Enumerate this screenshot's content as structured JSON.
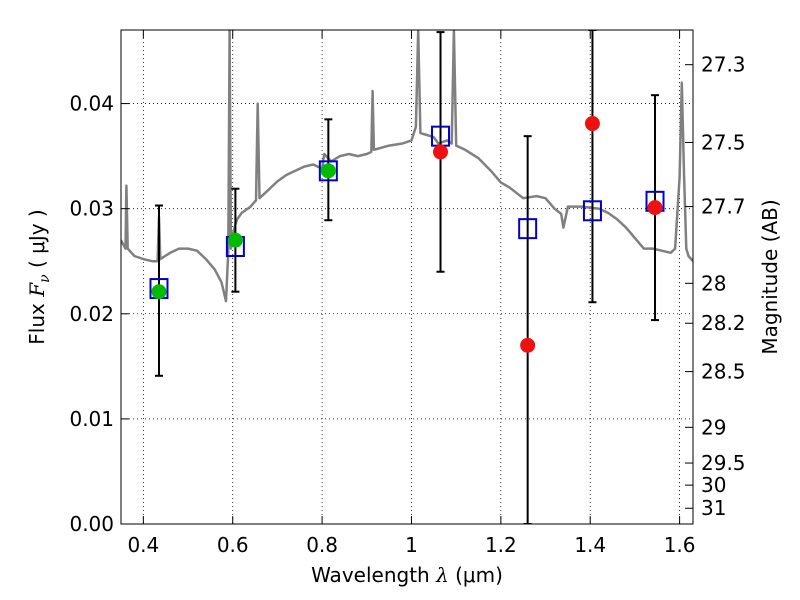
{
  "chart_data": {
    "type": "scatter",
    "xlabel": {
      "prefix": "Wavelength  ",
      "symbol": "λ",
      "units": " (μm)"
    },
    "ylabel": {
      "prefix": "Flux  ",
      "symbol": "F",
      "subscript": "ν",
      "units": "  ( μJy )"
    },
    "y2label": "Magnitude (AB)",
    "xlim": [
      0.35,
      1.63
    ],
    "ylim": [
      0.0,
      0.047
    ],
    "x_ticks": [
      0.4,
      0.6,
      0.8,
      1.0,
      1.2,
      1.4,
      1.6
    ],
    "x_tick_labels": [
      "0.4",
      "0.6",
      "0.8",
      "1",
      "1.2",
      "1.4",
      "1.6"
    ],
    "y_ticks": [
      0.0,
      0.01,
      0.02,
      0.03,
      0.04
    ],
    "y_tick_labels": [
      "0.00",
      "0.01",
      "0.02",
      "0.03",
      "0.04"
    ],
    "magnitude_ticks": [
      {
        "label": "27.3",
        "flux": 0.0437
      },
      {
        "label": "27.5",
        "flux": 0.0363
      },
      {
        "label": "27.7",
        "flux": 0.0302
      },
      {
        "label": "28",
        "flux": 0.0229
      },
      {
        "label": "28.2",
        "flux": 0.0191
      },
      {
        "label": "28.5",
        "flux": 0.0145
      },
      {
        "label": "29",
        "flux": 0.0092
      },
      {
        "label": "29.5",
        "flux": 0.0058
      },
      {
        "label": "30",
        "flux": 0.0037
      },
      {
        "label": "31",
        "flux": 0.0015
      }
    ],
    "grid": true,
    "colors": {
      "sed": "#808080",
      "model": "#0000cc",
      "detected": "#00bb00",
      "observed": "#ee1111",
      "errorbar": "#000000"
    },
    "observations": [
      {
        "x": 0.435,
        "flux": 0.0221,
        "err_low": 0.0141,
        "err_high": 0.0303,
        "kind": "detected"
      },
      {
        "x": 0.606,
        "flux": 0.027,
        "err_low": 0.0221,
        "err_high": 0.0319,
        "kind": "detected"
      },
      {
        "x": 0.814,
        "flux": 0.0336,
        "err_low": 0.0289,
        "err_high": 0.0385,
        "kind": "detected"
      },
      {
        "x": 1.065,
        "flux": 0.0354,
        "err_low": 0.024,
        "err_high": 0.0468,
        "kind": "observed"
      },
      {
        "x": 1.26,
        "flux": 0.017,
        "err_low": 0.0,
        "err_high": 0.0369,
        "kind": "observed"
      },
      {
        "x": 1.405,
        "flux": 0.0381,
        "err_low": 0.0211,
        "err_high": 0.047,
        "kind": "observed"
      },
      {
        "x": 1.545,
        "flux": 0.0301,
        "err_low": 0.0194,
        "err_high": 0.0408,
        "kind": "observed"
      }
    ],
    "model_photometry": [
      {
        "x": 0.435,
        "flux": 0.0224
      },
      {
        "x": 0.606,
        "flux": 0.0264
      },
      {
        "x": 0.814,
        "flux": 0.0336
      },
      {
        "x": 1.065,
        "flux": 0.0369
      },
      {
        "x": 1.26,
        "flux": 0.0281
      },
      {
        "x": 1.405,
        "flux": 0.0298
      },
      {
        "x": 1.545,
        "flux": 0.0307
      }
    ],
    "sed_spectrum": [
      [
        0.35,
        0.027
      ],
      [
        0.36,
        0.0262
      ],
      [
        0.362,
        0.0322
      ],
      [
        0.365,
        0.0262
      ],
      [
        0.38,
        0.0255
      ],
      [
        0.4,
        0.0252
      ],
      [
        0.42,
        0.025
      ],
      [
        0.432,
        0.025
      ],
      [
        0.435,
        0.0292
      ],
      [
        0.438,
        0.0252
      ],
      [
        0.46,
        0.0258
      ],
      [
        0.48,
        0.0262
      ],
      [
        0.5,
        0.0262
      ],
      [
        0.52,
        0.026
      ],
      [
        0.54,
        0.0252
      ],
      [
        0.56,
        0.0242
      ],
      [
        0.575,
        0.023
      ],
      [
        0.585,
        0.0212
      ],
      [
        0.59,
        0.026
      ],
      [
        0.593,
        0.047
      ],
      [
        0.596,
        0.0262
      ],
      [
        0.6,
        0.0275
      ],
      [
        0.606,
        0.0285
      ],
      [
        0.61,
        0.029
      ],
      [
        0.62,
        0.0296
      ],
      [
        0.64,
        0.0302
      ],
      [
        0.652,
        0.0308
      ],
      [
        0.656,
        0.04
      ],
      [
        0.66,
        0.031
      ],
      [
        0.68,
        0.0318
      ],
      [
        0.7,
        0.0326
      ],
      [
        0.72,
        0.0332
      ],
      [
        0.74,
        0.0336
      ],
      [
        0.76,
        0.034
      ],
      [
        0.78,
        0.0342
      ],
      [
        0.8,
        0.0338
      ],
      [
        0.805,
        0.0352
      ],
      [
        0.82,
        0.0345
      ],
      [
        0.84,
        0.035
      ],
      [
        0.86,
        0.0352
      ],
      [
        0.88,
        0.035
      ],
      [
        0.9,
        0.0352
      ],
      [
        0.91,
        0.0354
      ],
      [
        0.913,
        0.0412
      ],
      [
        0.916,
        0.0356
      ],
      [
        0.95,
        0.036
      ],
      [
        0.98,
        0.0362
      ],
      [
        1.0,
        0.0365
      ],
      [
        1.01,
        0.0378
      ],
      [
        1.015,
        0.047
      ],
      [
        1.02,
        0.0372
      ],
      [
        1.05,
        0.0368
      ],
      [
        1.06,
        0.0362
      ],
      [
        1.08,
        0.0365
      ],
      [
        1.09,
        0.0362
      ],
      [
        1.095,
        0.047
      ],
      [
        1.1,
        0.036
      ],
      [
        1.12,
        0.0356
      ],
      [
        1.15,
        0.0348
      ],
      [
        1.18,
        0.0335
      ],
      [
        1.2,
        0.0325
      ],
      [
        1.22,
        0.032
      ],
      [
        1.25,
        0.031
      ],
      [
        1.28,
        0.0312
      ],
      [
        1.3,
        0.031
      ],
      [
        1.32,
        0.03
      ],
      [
        1.335,
        0.0295
      ],
      [
        1.34,
        0.0282
      ],
      [
        1.35,
        0.0302
      ],
      [
        1.38,
        0.0302
      ],
      [
        1.4,
        0.0301
      ],
      [
        1.42,
        0.03
      ],
      [
        1.44,
        0.0296
      ],
      [
        1.46,
        0.029
      ],
      [
        1.48,
        0.0282
      ],
      [
        1.5,
        0.0272
      ],
      [
        1.52,
        0.0262
      ],
      [
        1.54,
        0.0262
      ],
      [
        1.56,
        0.026
      ],
      [
        1.58,
        0.0258
      ],
      [
        1.59,
        0.0262
      ],
      [
        1.6,
        0.033
      ],
      [
        1.605,
        0.042
      ],
      [
        1.61,
        0.033
      ],
      [
        1.615,
        0.0262
      ],
      [
        1.62,
        0.0255
      ],
      [
        1.63,
        0.025
      ]
    ]
  }
}
